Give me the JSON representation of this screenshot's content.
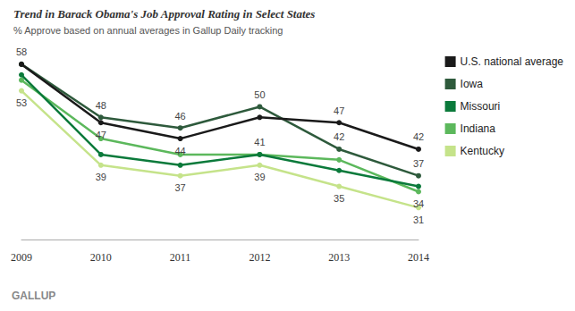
{
  "chart_data": {
    "type": "line",
    "title": "Trend in Barack Obama's Job Approval Rating in Select States",
    "subtitle": "% Approve based on annual averages in Gallup Daily tracking",
    "footer": "GALLUP",
    "categories": [
      "2009",
      "2010",
      "2011",
      "2012",
      "2013",
      "2014"
    ],
    "ylim": [
      25,
      60
    ],
    "tick_labels": "x",
    "grid": false,
    "legend": "right",
    "data_labels": true,
    "marker": "circle",
    "series": [
      {
        "name": "U.S. national average",
        "color": "#1a1a1a",
        "values": [
          58,
          47,
          44,
          48,
          47,
          42
        ],
        "value_labels": [
          "58",
          "47",
          "44",
          null,
          "47",
          "42"
        ]
      },
      {
        "name": "Iowa",
        "color": "#2e5a3c",
        "values": [
          58,
          48,
          46,
          50,
          42,
          37
        ],
        "value_labels": [
          null,
          "48",
          "46",
          "50",
          "42",
          "37"
        ]
      },
      {
        "name": "Missouri",
        "color": "#0b7a3b",
        "values": [
          56,
          41,
          39,
          41,
          38,
          35
        ],
        "value_labels": [
          null,
          null,
          null,
          null,
          null,
          null
        ]
      },
      {
        "name": "Indiana",
        "color": "#5cb85c",
        "values": [
          55,
          44,
          41,
          41,
          40,
          34
        ],
        "value_labels": [
          null,
          null,
          null,
          "41",
          null,
          "34"
        ]
      },
      {
        "name": "Kentucky",
        "color": "#c5e38a",
        "values": [
          53,
          39,
          37,
          39,
          35,
          31
        ],
        "value_labels": [
          "53",
          "39",
          "37",
          "39",
          "35",
          "31"
        ]
      }
    ]
  }
}
